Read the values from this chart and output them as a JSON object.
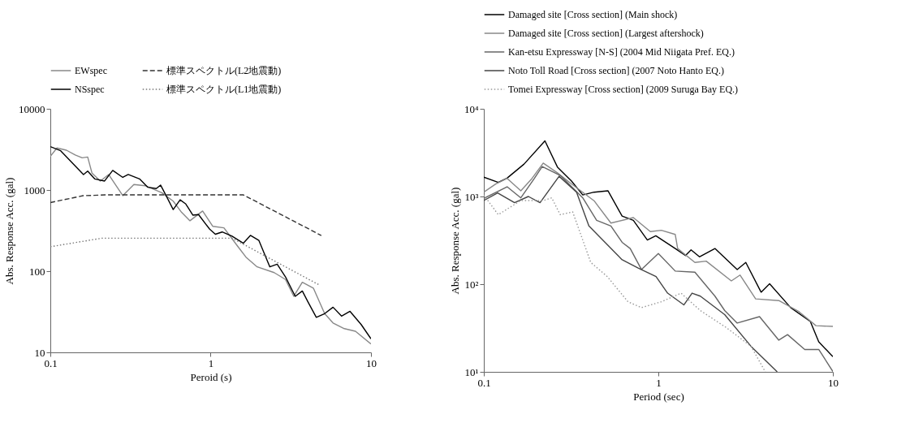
{
  "chart_data": [
    {
      "type": "line",
      "xlabel": "Peroid (s)",
      "ylabel": "Abs. Response Acc. (gal)",
      "log": "xy",
      "xlim": [
        0.1,
        10
      ],
      "ylim": [
        10,
        10000
      ],
      "xticks": [
        0.1,
        1,
        10
      ],
      "yticks": [
        10,
        100,
        1000,
        10000
      ],
      "legend": "top",
      "grid": false,
      "series": [
        {
          "name": "EWspec",
          "color": "#888888",
          "line_style": "solid",
          "x": [
            0.1,
            0.11,
            0.126,
            0.143,
            0.158,
            0.171,
            0.182,
            0.205,
            0.231,
            0.283,
            0.332,
            0.39,
            0.496,
            0.584,
            0.659,
            0.743,
            0.891,
            1.03,
            1.21,
            1.47,
            1.66,
            1.95,
            2.49,
            2.93,
            3.3,
            3.73,
            4.37,
            5.14,
            5.8,
            6.82,
            8.0,
            10
          ],
          "values": [
            2590,
            3290,
            3090,
            2700,
            2490,
            2550,
            1610,
            1290,
            1550,
            853,
            1170,
            1130,
            924,
            728,
            530,
            418,
            551,
            357,
            342,
            204,
            149,
            113,
            96,
            79,
            49,
            73,
            62,
            30,
            23,
            19.6,
            18.2,
            12.7
          ]
        },
        {
          "name": "NSspec",
          "color": "#000000",
          "line_style": "solid",
          "x": [
            0.1,
            0.116,
            0.161,
            0.171,
            0.189,
            0.218,
            0.245,
            0.283,
            0.306,
            0.36,
            0.406,
            0.458,
            0.487,
            0.528,
            0.584,
            0.645,
            0.7,
            0.774,
            0.84,
            0.986,
            1.07,
            1.18,
            1.36,
            1.6,
            1.77,
            2.0,
            2.34,
            2.6,
            2.93,
            3.37,
            3.73,
            4.04,
            4.56,
            5.14,
            5.8,
            6.55,
            7.4,
            8.69,
            10
          ],
          "values": [
            3420,
            3040,
            1550,
            1710,
            1370,
            1290,
            1740,
            1430,
            1550,
            1370,
            1080,
            1040,
            1150,
            850,
            574,
            757,
            672,
            490,
            498,
            329,
            285,
            304,
            270,
            221,
            276,
            239,
            113,
            122,
            85,
            49,
            57,
            42,
            27,
            30,
            36,
            28,
            32,
            22,
            14.7
          ]
        },
        {
          "name": "標準スペクトル(L2地震動)",
          "color": "#333333",
          "line_style": "dashed",
          "x": [
            0.1,
            0.16,
            0.22,
            1.6,
            4.9
          ],
          "values": [
            700,
            850,
            870,
            870,
            275
          ]
        },
        {
          "name": "標準スペクトル(L1地震動)",
          "color": "#777777",
          "line_style": "dotted",
          "x": [
            0.1,
            0.21,
            1.36,
            4.8
          ],
          "values": [
            200,
            255,
            255,
            67
          ]
        }
      ]
    },
    {
      "type": "line",
      "xlabel": "Period (sec)",
      "ylabel": "Abs. Response Acc. (gal)",
      "log": "xy",
      "xlim": [
        0.1,
        10
      ],
      "ylim": [
        10,
        10000
      ],
      "xticks": [
        0.1,
        1,
        10
      ],
      "yticks": [
        {
          "value": 10,
          "label": "10¹"
        },
        {
          "value": 100,
          "label": "10²"
        },
        {
          "value": 1000,
          "label": "10³"
        },
        {
          "value": 10000,
          "label": "10⁴"
        }
      ],
      "legend": "top",
      "grid": false,
      "series": [
        {
          "name": "Damaged site [Cross section] (Main shock)",
          "color": "#000000",
          "line_style": "solid",
          "x": [
            0.1,
            0.121,
            0.136,
            0.17,
            0.224,
            0.264,
            0.318,
            0.369,
            0.428,
            0.515,
            0.62,
            0.719,
            0.865,
            0.967,
            1.25,
            1.43,
            1.54,
            1.72,
            2.11,
            2.83,
            3.17,
            3.88,
            4.34,
            5.73,
            7.43,
            8.3,
            10
          ],
          "values": [
            1660,
            1450,
            1620,
            2340,
            4310,
            2170,
            1500,
            1040,
            1120,
            1160,
            597,
            535,
            319,
            356,
            255,
            212,
            246,
            205,
            255,
            147,
            177,
            81,
            101,
            54,
            37.5,
            22,
            14.9
          ]
        },
        {
          "name": "Damaged site [Cross section] (Largest aftershock)",
          "color": "#888888",
          "line_style": "solid",
          "x": [
            0.1,
            0.117,
            0.136,
            0.163,
            0.189,
            0.219,
            0.264,
            0.318,
            0.428,
            0.535,
            0.719,
            0.9,
            1.04,
            1.25,
            1.29,
            1.62,
            1.88,
            2.62,
            2.94,
            3.61,
            4.9,
            6.4,
            8.0,
            10
          ],
          "values": [
            1120,
            1390,
            1610,
            1160,
            1610,
            2400,
            1860,
            1390,
            895,
            497,
            575,
            398,
            412,
            369,
            255,
            177,
            183,
            109,
            127,
            68,
            65,
            48.5,
            33.6,
            33
          ]
        },
        {
          "name": "Kan-etsu Expressway [N-S] (2004 Mid Niigata Pref. EQ.)",
          "color": "#666666",
          "line_style": "solid",
          "x": [
            0.1,
            0.136,
            0.163,
            0.195,
            0.216,
            0.274,
            0.369,
            0.443,
            0.535,
            0.62,
            0.69,
            0.8,
            1.0,
            1.25,
            1.62,
            2.11,
            2.4,
            2.83,
            3.8,
            4.9,
            5.5,
            6.9,
            8.3,
            10
          ],
          "values": [
            950,
            1290,
            965,
            1610,
            2200,
            1740,
            965,
            535,
            461,
            300,
            255,
            147,
            224,
            141,
            137,
            73,
            50,
            36,
            42.6,
            23,
            26.6,
            18,
            18,
            10.1
          ]
        },
        {
          "name": "Noto Toll Road [Cross section] (2007 Noto Hanto EQ.)",
          "color": "#444444",
          "line_style": "solid",
          "x": [
            0.1,
            0.12,
            0.15,
            0.18,
            0.21,
            0.27,
            0.34,
            0.4,
            0.62,
            0.77,
            0.97,
            1.13,
            1.4,
            1.56,
            1.74,
            2.4,
            3.4,
            4.8
          ],
          "values": [
            900,
            1100,
            850,
            1000,
            850,
            1700,
            1120,
            461,
            190,
            152,
            122,
            79,
            58,
            79,
            73,
            45,
            19.5,
            10
          ]
        },
        {
          "name": "Tomei Expressway [Cross section] (2009 Suruga Bay EQ.)",
          "color": "#999999",
          "line_style": "dotted",
          "x": [
            0.1,
            0.121,
            0.163,
            0.22,
            0.245,
            0.274,
            0.323,
            0.41,
            0.51,
            0.67,
            0.8,
            1.04,
            1.35,
            1.74,
            2.45,
            3.4,
            4.1
          ],
          "values": [
            1040,
            620,
            900,
            900,
            965,
            620,
            667,
            177,
            122,
            63,
            54,
            63,
            79,
            50,
            32,
            19.5,
            10
          ]
        }
      ]
    }
  ]
}
